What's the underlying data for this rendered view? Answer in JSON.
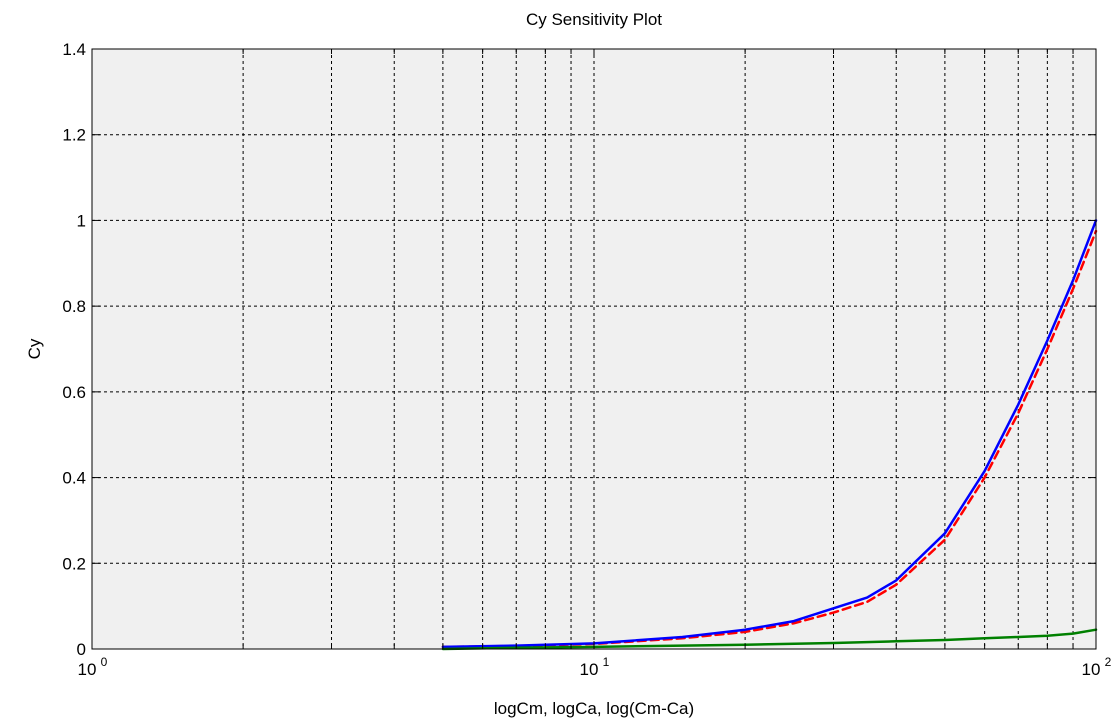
{
  "chart_data": {
    "type": "line",
    "title": "Cy Sensitivity Plot",
    "xlabel": "logCm, logCa, log(Cm-Ca)",
    "ylabel": "Cy",
    "xscale": "log",
    "xlim": [
      1,
      100
    ],
    "ylim": [
      0,
      1.4
    ],
    "grid": true,
    "grid_style": "dashed",
    "background": "#f0f0f0",
    "x_ticks": [
      {
        "value": 1,
        "base": "10",
        "exp": "0"
      },
      {
        "value": 10,
        "base": "10",
        "exp": "1"
      },
      {
        "value": 100,
        "base": "10",
        "exp": "2"
      }
    ],
    "y_ticks": [
      {
        "value": 0,
        "label": "0"
      },
      {
        "value": 0.2,
        "label": "0.2"
      },
      {
        "value": 0.4,
        "label": "0.4"
      },
      {
        "value": 0.6,
        "label": "0.6"
      },
      {
        "value": 0.8,
        "label": "0.8"
      },
      {
        "value": 1.0,
        "label": "1"
      },
      {
        "value": 1.2,
        "label": "1.2"
      },
      {
        "value": 1.4,
        "label": "1.4"
      }
    ],
    "series": [
      {
        "color": "#ff0000",
        "style": "dashed",
        "x": [
          5,
          7,
          10,
          15,
          20,
          25,
          30,
          35,
          40,
          50,
          60,
          70,
          80,
          90,
          100
        ],
        "y": [
          0.005,
          0.007,
          0.012,
          0.025,
          0.04,
          0.06,
          0.085,
          0.11,
          0.15,
          0.255,
          0.4,
          0.55,
          0.7,
          0.84,
          0.975
        ]
      },
      {
        "color": "#0000ff",
        "style": "solid",
        "x": [
          5,
          7,
          10,
          15,
          20,
          25,
          30,
          35,
          40,
          50,
          60,
          70,
          80,
          90,
          100
        ],
        "y": [
          0.005,
          0.008,
          0.013,
          0.028,
          0.045,
          0.065,
          0.095,
          0.12,
          0.16,
          0.27,
          0.415,
          0.57,
          0.72,
          0.86,
          1.0
        ]
      },
      {
        "color": "#008000",
        "style": "solid",
        "x": [
          5,
          7,
          10,
          15,
          20,
          30,
          40,
          50,
          60,
          70,
          80,
          90,
          100
        ],
        "y": [
          0.0,
          0.003,
          0.005,
          0.008,
          0.01,
          0.014,
          0.018,
          0.021,
          0.025,
          0.028,
          0.031,
          0.036,
          0.045
        ]
      }
    ]
  }
}
